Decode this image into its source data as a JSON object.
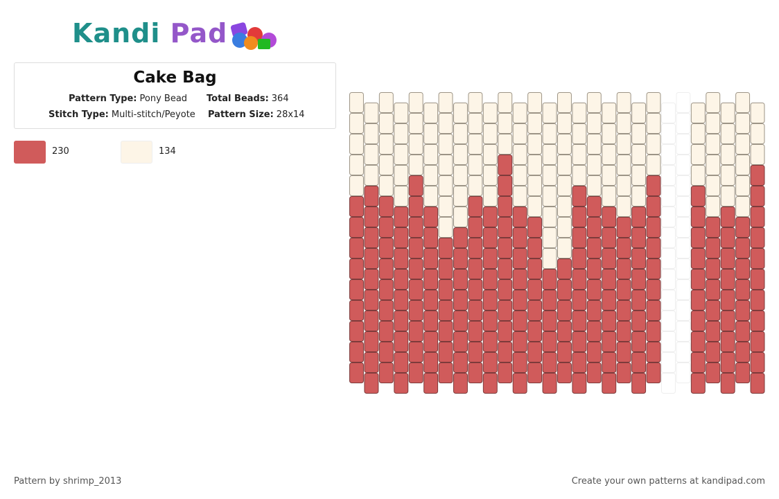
{
  "logo": {
    "first": "Kandi",
    "second": "Pad"
  },
  "pattern": {
    "title": "Cake Bag",
    "details": [
      {
        "label": "Pattern Type:",
        "value": "Pony Bead"
      },
      {
        "label": "Total Beads:",
        "value": "364"
      },
      {
        "label": "Stitch Type:",
        "value": "Multi-stitch/Peyote"
      },
      {
        "label": "Pattern Size:",
        "value": "28x14"
      }
    ],
    "legend": [
      {
        "key": "0",
        "color": "#d05b5b",
        "stroke": "#7d3b3b",
        "count": 230
      },
      {
        "key": "1",
        "color": "#fdf5e7",
        "stroke": "#9c9486",
        "count": 134
      }
    ],
    "columns": [
      "11111000000000",
      "11110000000000",
      "11111000000000",
      "11111000000000",
      "11110000000000",
      "11111000000000",
      "11111110000000",
      "11111100000000",
      "11111000000000",
      "11111000000000",
      "11100000000000",
      "11111000000000",
      "11111100000000",
      "11111111000000",
      "11111111000000",
      "11110000000000",
      "11111000000000",
      "11111000000000",
      "11111100000000",
      "11111000000000",
      "11110000000000",
      "--------------",
      "--------------",
      "11110000000000",
      "11111100000000",
      "11111000000000",
      "11111100000000",
      "11100000000000"
    ]
  },
  "footer": {
    "left": "Pattern by shrimp_2013",
    "right": "Create your own patterns at kandipad.com"
  }
}
